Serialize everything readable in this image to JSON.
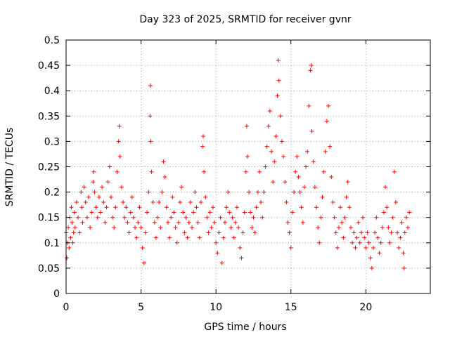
{
  "chart_data": {
    "type": "scatter",
    "title": "Day 323 of 2025, SRMTID for receiver gvnr",
    "xlabel": "GPS time / hours",
    "ylabel": "SRMTID / TECUs",
    "xlim": [
      0,
      24.3
    ],
    "ylim": [
      0,
      0.5
    ],
    "xticks": [
      0,
      5,
      10,
      15,
      20
    ],
    "xtick_labels": [
      "0",
      "5",
      "10",
      "15",
      "20"
    ],
    "yticks": [
      0,
      0.05,
      0.1,
      0.15,
      0.2,
      0.25,
      0.3,
      0.35,
      0.4,
      0.45,
      0.5
    ],
    "ytick_labels": [
      "0",
      "0.05",
      "0.1",
      "0.15",
      "0.2",
      "0.25",
      "0.3",
      "0.35",
      "0.4",
      "0.45",
      "0.5"
    ],
    "grid": true,
    "marker": "+",
    "color": "#ff0000",
    "series": [
      {
        "name": "SRMTID",
        "points": [
          [
            0.0,
            0.12
          ],
          [
            0.05,
            0.07
          ],
          [
            0.1,
            0.1
          ],
          [
            0.15,
            0.13
          ],
          [
            0.2,
            0.09
          ],
          [
            0.25,
            0.15
          ],
          [
            0.3,
            0.11
          ],
          [
            0.35,
            0.17
          ],
          [
            0.4,
            0.14
          ],
          [
            0.45,
            0.1
          ],
          [
            0.5,
            0.12
          ],
          [
            0.55,
            0.16
          ],
          [
            0.6,
            0.13
          ],
          [
            0.7,
            0.18
          ],
          [
            0.8,
            0.15
          ],
          [
            0.9,
            0.12
          ],
          [
            1.0,
            0.2
          ],
          [
            1.05,
            0.17
          ],
          [
            1.1,
            0.14
          ],
          [
            1.2,
            0.21
          ],
          [
            1.3,
            0.18
          ],
          [
            1.4,
            0.15
          ],
          [
            1.5,
            0.19
          ],
          [
            1.6,
            0.13
          ],
          [
            1.7,
            0.16
          ],
          [
            1.8,
            0.22
          ],
          [
            1.85,
            0.24
          ],
          [
            1.9,
            0.2
          ],
          [
            2.0,
            0.17
          ],
          [
            2.1,
            0.15
          ],
          [
            2.2,
            0.19
          ],
          [
            2.3,
            0.16
          ],
          [
            2.4,
            0.21
          ],
          [
            2.5,
            0.18
          ],
          [
            2.6,
            0.14
          ],
          [
            2.7,
            0.17
          ],
          [
            2.8,
            0.22
          ],
          [
            2.9,
            0.25
          ],
          [
            3.0,
            0.19
          ],
          [
            3.1,
            0.15
          ],
          [
            3.2,
            0.13
          ],
          [
            3.3,
            0.17
          ],
          [
            3.4,
            0.24
          ],
          [
            3.5,
            0.3
          ],
          [
            3.55,
            0.33
          ],
          [
            3.6,
            0.27
          ],
          [
            3.7,
            0.21
          ],
          [
            3.8,
            0.18
          ],
          [
            3.9,
            0.15
          ],
          [
            4.0,
            0.17
          ],
          [
            4.1,
            0.14
          ],
          [
            4.2,
            0.12
          ],
          [
            4.3,
            0.16
          ],
          [
            4.4,
            0.19
          ],
          [
            4.5,
            0.15
          ],
          [
            4.6,
            0.13
          ],
          [
            4.7,
            0.11
          ],
          [
            4.8,
            0.14
          ],
          [
            4.9,
            0.17
          ],
          [
            5.0,
            0.13
          ],
          [
            5.1,
            0.09
          ],
          [
            5.2,
            0.06
          ],
          [
            5.3,
            0.12
          ],
          [
            5.4,
            0.16
          ],
          [
            5.5,
            0.2
          ],
          [
            5.6,
            0.35
          ],
          [
            5.62,
            0.41
          ],
          [
            5.65,
            0.3
          ],
          [
            5.7,
            0.24
          ],
          [
            5.8,
            0.18
          ],
          [
            5.9,
            0.14
          ],
          [
            6.0,
            0.11
          ],
          [
            6.1,
            0.15
          ],
          [
            6.2,
            0.18
          ],
          [
            6.3,
            0.13
          ],
          [
            6.4,
            0.2
          ],
          [
            6.5,
            0.26
          ],
          [
            6.6,
            0.23
          ],
          [
            6.7,
            0.17
          ],
          [
            6.8,
            0.14
          ],
          [
            6.9,
            0.11
          ],
          [
            7.0,
            0.15
          ],
          [
            7.1,
            0.19
          ],
          [
            7.2,
            0.16
          ],
          [
            7.3,
            0.13
          ],
          [
            7.4,
            0.1
          ],
          [
            7.5,
            0.14
          ],
          [
            7.6,
            0.18
          ],
          [
            7.7,
            0.21
          ],
          [
            7.8,
            0.16
          ],
          [
            7.9,
            0.12
          ],
          [
            8.0,
            0.15
          ],
          [
            8.1,
            0.11
          ],
          [
            8.2,
            0.14
          ],
          [
            8.3,
            0.18
          ],
          [
            8.4,
            0.13
          ],
          [
            8.5,
            0.16
          ],
          [
            8.6,
            0.2
          ],
          [
            8.7,
            0.17
          ],
          [
            8.8,
            0.14
          ],
          [
            8.9,
            0.11
          ],
          [
            9.0,
            0.18
          ],
          [
            9.1,
            0.29
          ],
          [
            9.15,
            0.31
          ],
          [
            9.2,
            0.24
          ],
          [
            9.3,
            0.19
          ],
          [
            9.4,
            0.15
          ],
          [
            9.5,
            0.12
          ],
          [
            9.6,
            0.16
          ],
          [
            9.7,
            0.13
          ],
          [
            9.8,
            0.17
          ],
          [
            9.9,
            0.14
          ],
          [
            10.0,
            0.1
          ],
          [
            10.1,
            0.08
          ],
          [
            10.2,
            0.12
          ],
          [
            10.3,
            0.15
          ],
          [
            10.4,
            0.06
          ],
          [
            10.5,
            0.11
          ],
          [
            10.6,
            0.14
          ],
          [
            10.7,
            0.17
          ],
          [
            10.8,
            0.2
          ],
          [
            10.9,
            0.16
          ],
          [
            11.0,
            0.13
          ],
          [
            11.1,
            0.15
          ],
          [
            11.2,
            0.11
          ],
          [
            11.3,
            0.14
          ],
          [
            11.4,
            0.17
          ],
          [
            11.5,
            0.13
          ],
          [
            11.6,
            0.09
          ],
          [
            11.7,
            0.07
          ],
          [
            11.8,
            0.12
          ],
          [
            11.9,
            0.16
          ],
          [
            12.0,
            0.24
          ],
          [
            12.05,
            0.33
          ],
          [
            12.1,
            0.27
          ],
          [
            12.2,
            0.2
          ],
          [
            12.3,
            0.16
          ],
          [
            12.4,
            0.13
          ],
          [
            12.5,
            0.15
          ],
          [
            12.6,
            0.12
          ],
          [
            12.7,
            0.17
          ],
          [
            12.8,
            0.2
          ],
          [
            12.9,
            0.24
          ],
          [
            13.0,
            0.18
          ],
          [
            13.1,
            0.15
          ],
          [
            13.2,
            0.2
          ],
          [
            13.3,
            0.25
          ],
          [
            13.4,
            0.29
          ],
          [
            13.5,
            0.33
          ],
          [
            13.6,
            0.36
          ],
          [
            13.7,
            0.28
          ],
          [
            13.8,
            0.22
          ],
          [
            13.9,
            0.26
          ],
          [
            14.0,
            0.31
          ],
          [
            14.1,
            0.39
          ],
          [
            14.15,
            0.46
          ],
          [
            14.2,
            0.42
          ],
          [
            14.3,
            0.35
          ],
          [
            14.4,
            0.3
          ],
          [
            14.5,
            0.27
          ],
          [
            14.6,
            0.22
          ],
          [
            14.7,
            0.18
          ],
          [
            14.8,
            0.14
          ],
          [
            14.9,
            0.12
          ],
          [
            15.0,
            0.09
          ],
          [
            15.1,
            0.16
          ],
          [
            15.2,
            0.2
          ],
          [
            15.3,
            0.24
          ],
          [
            15.4,
            0.27
          ],
          [
            15.5,
            0.23
          ],
          [
            15.6,
            0.2
          ],
          [
            15.7,
            0.17
          ],
          [
            15.8,
            0.14
          ],
          [
            15.9,
            0.21
          ],
          [
            16.0,
            0.25
          ],
          [
            16.1,
            0.28
          ],
          [
            16.2,
            0.37
          ],
          [
            16.3,
            0.44
          ],
          [
            16.35,
            0.45
          ],
          [
            16.4,
            0.32
          ],
          [
            16.5,
            0.26
          ],
          [
            16.6,
            0.21
          ],
          [
            16.7,
            0.17
          ],
          [
            16.8,
            0.13
          ],
          [
            16.9,
            0.1
          ],
          [
            17.0,
            0.15
          ],
          [
            17.1,
            0.19
          ],
          [
            17.2,
            0.24
          ],
          [
            17.3,
            0.28
          ],
          [
            17.4,
            0.34
          ],
          [
            17.5,
            0.37
          ],
          [
            17.6,
            0.29
          ],
          [
            17.7,
            0.23
          ],
          [
            17.8,
            0.18
          ],
          [
            17.9,
            0.15
          ],
          [
            18.0,
            0.12
          ],
          [
            18.1,
            0.09
          ],
          [
            18.2,
            0.13
          ],
          [
            18.3,
            0.17
          ],
          [
            18.4,
            0.14
          ],
          [
            18.5,
            0.11
          ],
          [
            18.6,
            0.15
          ],
          [
            18.7,
            0.19
          ],
          [
            18.8,
            0.22
          ],
          [
            18.9,
            0.17
          ],
          [
            19.0,
            0.13
          ],
          [
            19.1,
            0.1
          ],
          [
            19.2,
            0.12
          ],
          [
            19.3,
            0.09
          ],
          [
            19.4,
            0.11
          ],
          [
            19.5,
            0.14
          ],
          [
            19.6,
            0.1
          ],
          [
            19.7,
            0.12
          ],
          [
            19.8,
            0.15
          ],
          [
            19.9,
            0.11
          ],
          [
            20.0,
            0.09
          ],
          [
            20.1,
            0.12
          ],
          [
            20.2,
            0.1
          ],
          [
            20.3,
            0.07
          ],
          [
            20.4,
            0.05
          ],
          [
            20.5,
            0.09
          ],
          [
            20.6,
            0.12
          ],
          [
            20.7,
            0.15
          ],
          [
            20.8,
            0.11
          ],
          [
            20.9,
            0.08
          ],
          [
            21.0,
            0.1
          ],
          [
            21.1,
            0.13
          ],
          [
            21.2,
            0.16
          ],
          [
            21.3,
            0.21
          ],
          [
            21.4,
            0.17
          ],
          [
            21.5,
            0.13
          ],
          [
            21.6,
            0.1
          ],
          [
            21.7,
            0.12
          ],
          [
            21.8,
            0.15
          ],
          [
            21.9,
            0.24
          ],
          [
            22.0,
            0.18
          ],
          [
            22.1,
            0.12
          ],
          [
            22.2,
            0.09
          ],
          [
            22.3,
            0.11
          ],
          [
            22.4,
            0.14
          ],
          [
            22.5,
            0.08
          ],
          [
            22.55,
            0.05
          ],
          [
            22.6,
            0.12
          ],
          [
            22.7,
            0.15
          ],
          [
            22.8,
            0.13
          ],
          [
            22.9,
            0.16
          ]
        ]
      }
    ]
  }
}
